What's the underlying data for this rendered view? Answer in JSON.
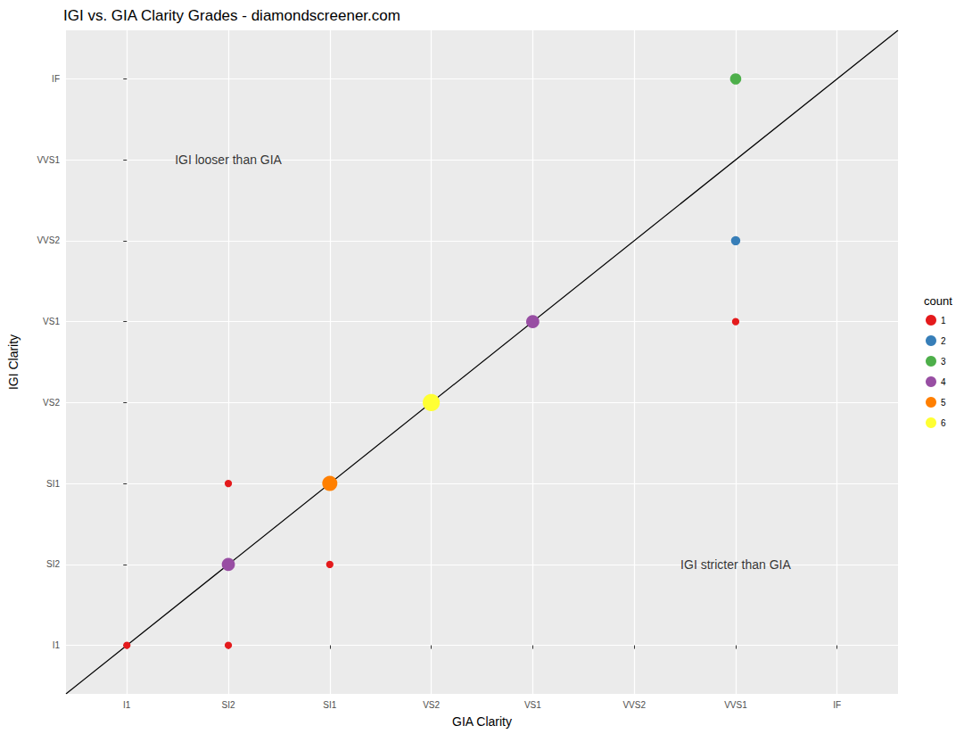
{
  "chart_data": {
    "type": "scatter",
    "title": "IGI vs. GIA Clarity Grades - diamondscreener.com",
    "x_label": "GIA Clarity",
    "y_label": "IGI Clarity",
    "x_categories": [
      "I1",
      "SI2",
      "SI1",
      "VS2",
      "VS1",
      "VVS2",
      "VVS1",
      "IF"
    ],
    "y_categories": [
      "I1",
      "SI2",
      "SI1",
      "VS2",
      "VS1",
      "VVS2",
      "VVS1",
      "IF"
    ],
    "legend_title": "count",
    "legend": "right",
    "grid": true,
    "series": [
      {
        "name": "1",
        "color": "#E41A1C",
        "x": [
          "I1",
          "SI2",
          "SI2",
          "SI1",
          "VVS1"
        ],
        "y": [
          "I1",
          "I1",
          "SI1",
          "SI2",
          "VS1"
        ],
        "values": [
          1,
          1,
          1,
          1,
          1
        ]
      },
      {
        "name": "2",
        "color": "#377EB8",
        "x": [
          "VVS1"
        ],
        "y": [
          "VVS2"
        ],
        "values": [
          2
        ]
      },
      {
        "name": "3",
        "color": "#4DAF4A",
        "x": [
          "VVS1"
        ],
        "y": [
          "IF"
        ],
        "values": [
          3
        ]
      },
      {
        "name": "4",
        "color": "#984EA3",
        "x": [
          "SI2",
          "VS1"
        ],
        "y": [
          "SI2",
          "VS1"
        ],
        "values": [
          4,
          4
        ]
      },
      {
        "name": "5",
        "color": "#FF7F00",
        "x": [
          "SI1"
        ],
        "y": [
          "SI1"
        ],
        "values": [
          5
        ]
      },
      {
        "name": "6",
        "color": "#FFFF33",
        "x": [
          "VS2"
        ],
        "y": [
          "VS2"
        ],
        "values": [
          6
        ]
      }
    ],
    "annotations": [
      {
        "text": "IGI looser than GIA",
        "x": "SI2",
        "y": "VVS1"
      },
      {
        "text": "IGI stricter than GIA",
        "x": "VVS1",
        "y": "SI2"
      }
    ]
  }
}
